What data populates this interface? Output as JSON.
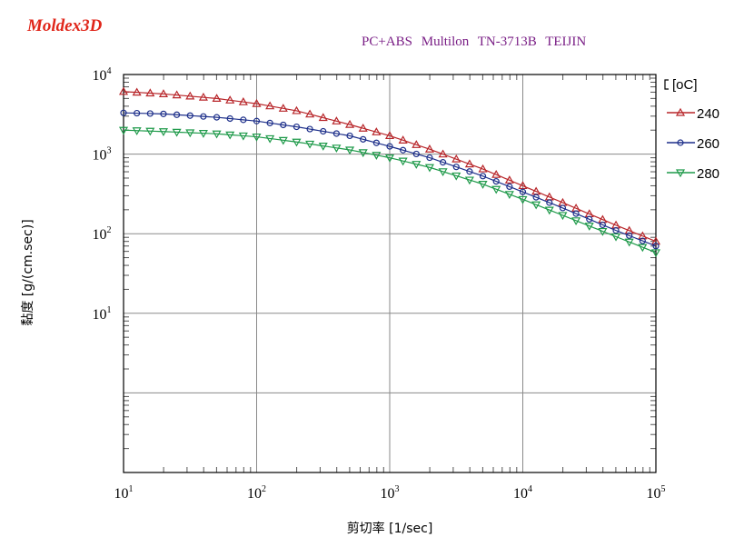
{
  "header": {
    "brand": "Moldex3D",
    "material": "PC+ABS   Multilon TN-3713B   TEIJIN"
  },
  "chart_data": {
    "type": "line",
    "title": "",
    "xlabel": "剪切率 [1/sec]",
    "ylabel": "黏度 [g/(cm.sec)]",
    "x_scale": "log",
    "y_scale": "log",
    "xlim": [
      10,
      100000
    ],
    "ylim": [
      0.1,
      10000
    ],
    "grid": true,
    "x_ticks": [
      {
        "base": "10",
        "exp": "1"
      },
      {
        "base": "10",
        "exp": "2"
      },
      {
        "base": "10",
        "exp": "3"
      },
      {
        "base": "10",
        "exp": "4"
      },
      {
        "base": "10",
        "exp": "5"
      }
    ],
    "y_ticks": [
      {
        "base": "10",
        "exp": "4"
      },
      {
        "base": "10",
        "exp": "3"
      },
      {
        "base": "10",
        "exp": "2"
      },
      {
        "base": "10",
        "exp": "1"
      }
    ],
    "legend": {
      "title": "[oC]",
      "position": "right"
    },
    "x": [
      10,
      20,
      50,
      100,
      200,
      500,
      1000,
      2000,
      5000,
      10000,
      20000,
      50000,
      100000
    ],
    "series": [
      {
        "name": "240",
        "color": "#b8262a",
        "marker": "triangle-up",
        "values": [
          6100,
          5700,
          5000,
          4300,
          3500,
          2350,
          1700,
          1150,
          650,
          400,
          245,
          128,
          80
        ]
      },
      {
        "name": "260",
        "color": "#1d2f8a",
        "marker": "circle",
        "values": [
          3300,
          3200,
          2900,
          2600,
          2200,
          1700,
          1250,
          900,
          530,
          335,
          210,
          110,
          70
        ]
      },
      {
        "name": "280",
        "color": "#1f9a4a",
        "marker": "triangle-down",
        "values": [
          2000,
          1920,
          1800,
          1650,
          1420,
          1130,
          900,
          680,
          420,
          270,
          170,
          92,
          58
        ]
      }
    ]
  }
}
